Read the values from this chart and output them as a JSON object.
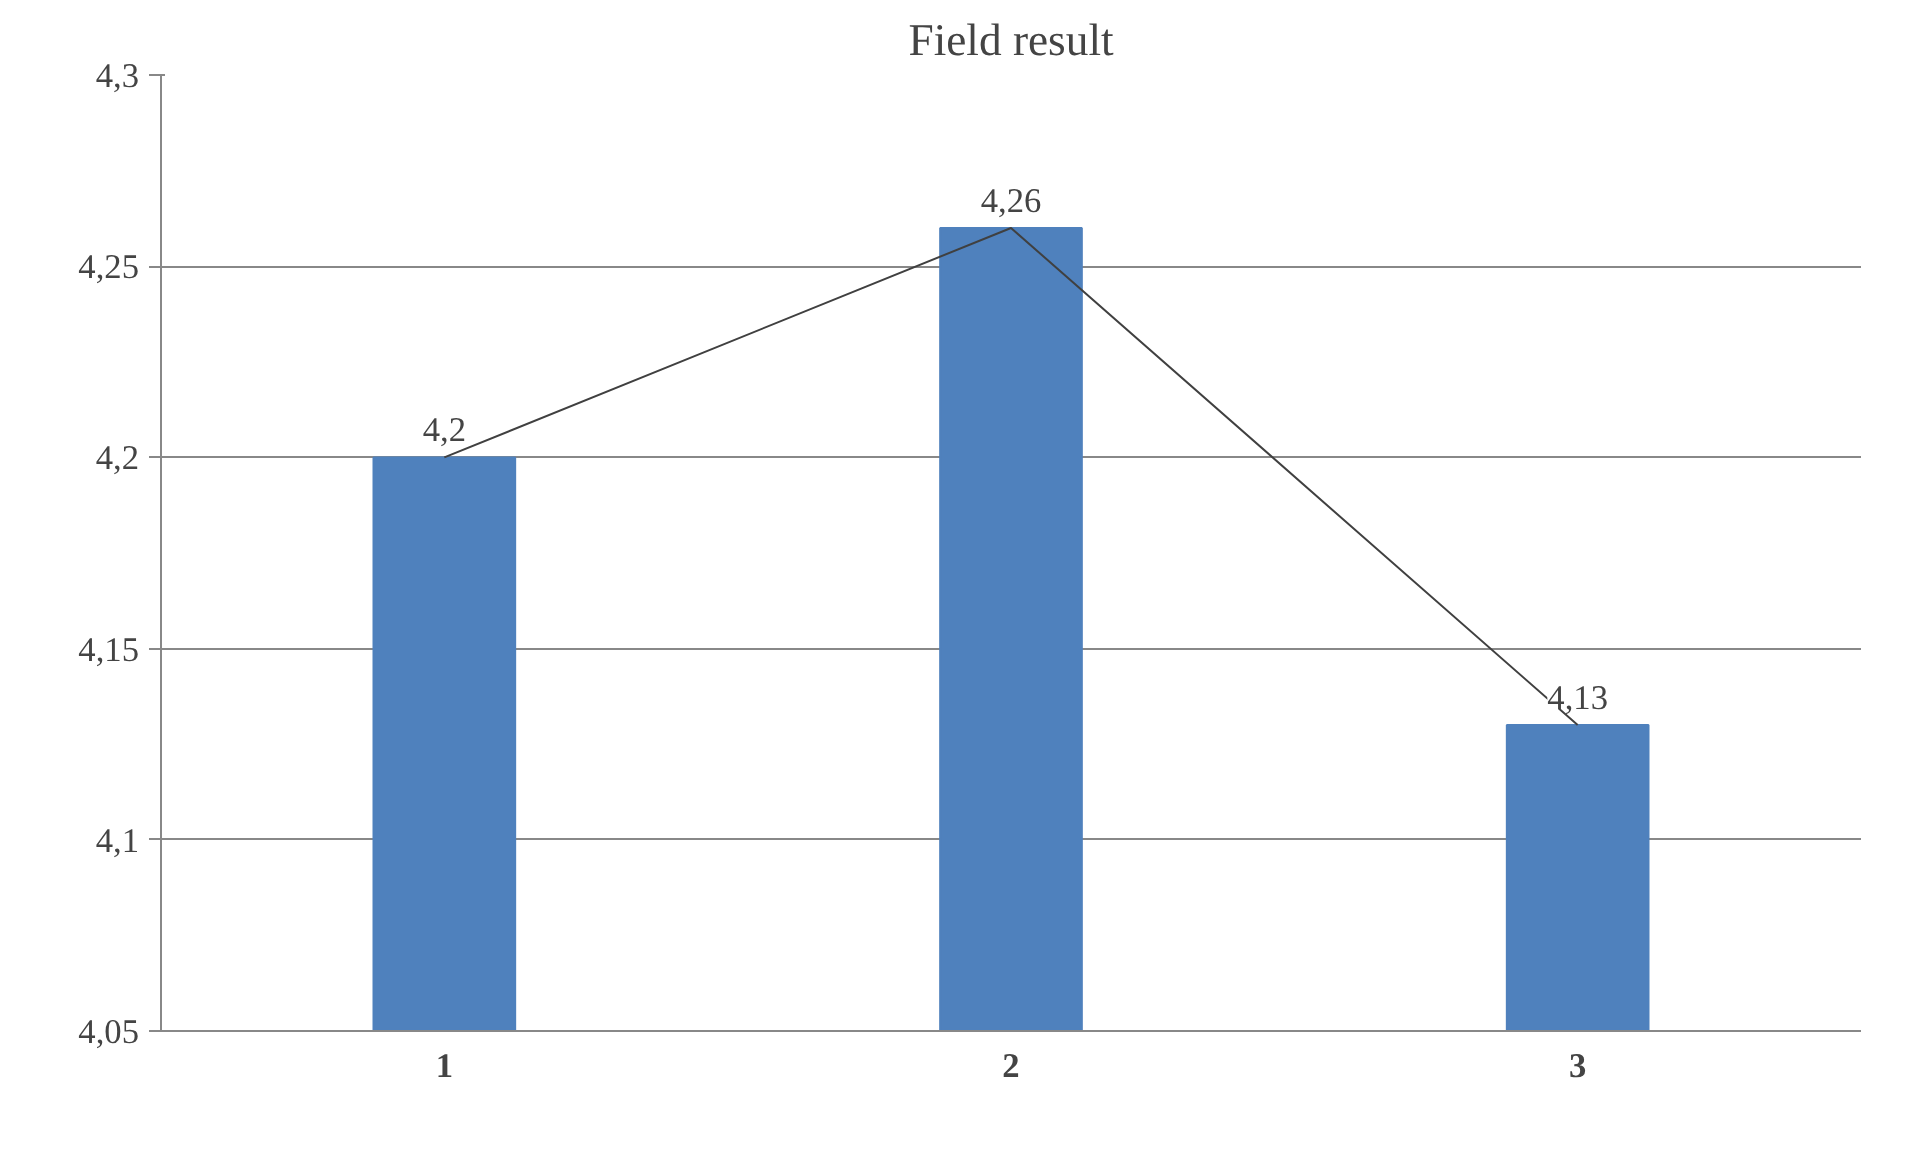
{
  "chart_data": {
    "type": "bar",
    "title": "Field result",
    "categories": [
      "1",
      "2",
      "3"
    ],
    "series": [
      {
        "color": "#4f81bd",
        "values": [
          4.2,
          4.26,
          4.13
        ],
        "value_labels": [
          "4,2",
          "4,26",
          "4,13"
        ]
      },
      {
        "type": "line",
        "color": "#404040",
        "values": [
          4.2,
          4.26,
          4.13
        ]
      }
    ],
    "ylim": [
      4.05,
      4.3
    ],
    "yticks": [
      {
        "value": 4.05,
        "label": "4,05"
      },
      {
        "value": 4.1,
        "label": "4,1"
      },
      {
        "value": 4.15,
        "label": "4,15"
      },
      {
        "value": 4.2,
        "label": "4,2"
      },
      {
        "value": 4.25,
        "label": "4,25"
      },
      {
        "value": 4.3,
        "label": "4,3"
      }
    ],
    "grid": "y"
  }
}
